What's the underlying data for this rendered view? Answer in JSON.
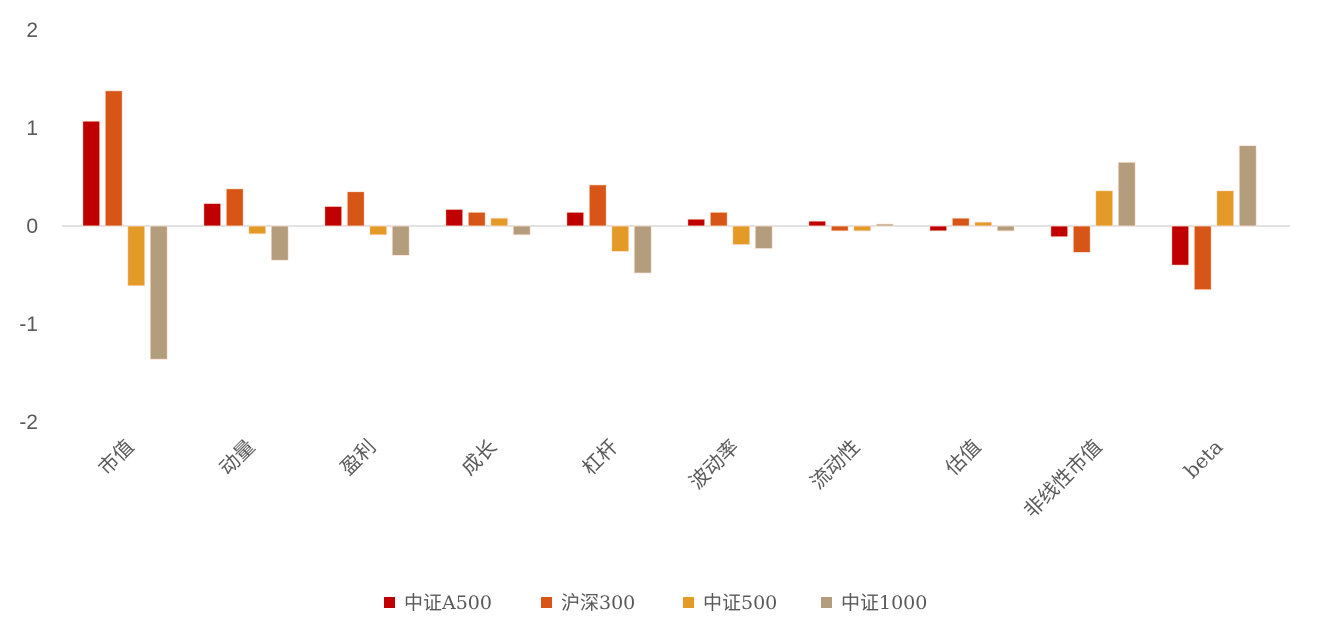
{
  "chart_data": {
    "type": "bar",
    "title": "",
    "xlabel": "",
    "ylabel": "",
    "ylim": [
      -2,
      2
    ],
    "yticks": [
      "2",
      "1",
      "0",
      "-1",
      "-2"
    ],
    "grid": false,
    "legend_position": "bottom",
    "categories": [
      "市值",
      "动量",
      "盈利",
      "成长",
      "杠杆",
      "波动率",
      "流动性",
      "估值",
      "非线性市值",
      "beta"
    ],
    "series": [
      {
        "name": "中证A500",
        "color": "#C00000",
        "values": [
          1.07,
          0.23,
          0.2,
          0.17,
          0.14,
          0.07,
          0.05,
          -0.05,
          -0.11,
          -0.4
        ]
      },
      {
        "name": "沪深300",
        "color": "#D75617",
        "values": [
          1.38,
          0.38,
          0.35,
          0.14,
          0.42,
          0.14,
          -0.05,
          0.08,
          -0.27,
          -0.65
        ]
      },
      {
        "name": "中证500",
        "color": "#E39A27",
        "values": [
          -0.61,
          -0.08,
          -0.09,
          0.08,
          -0.26,
          -0.19,
          -0.05,
          0.04,
          0.36,
          0.36
        ]
      },
      {
        "name": "中证1000",
        "color": "#B39D7D",
        "values": [
          -1.36,
          -0.35,
          -0.3,
          -0.09,
          -0.48,
          -0.23,
          0.02,
          -0.05,
          0.65,
          0.82
        ]
      }
    ]
  }
}
